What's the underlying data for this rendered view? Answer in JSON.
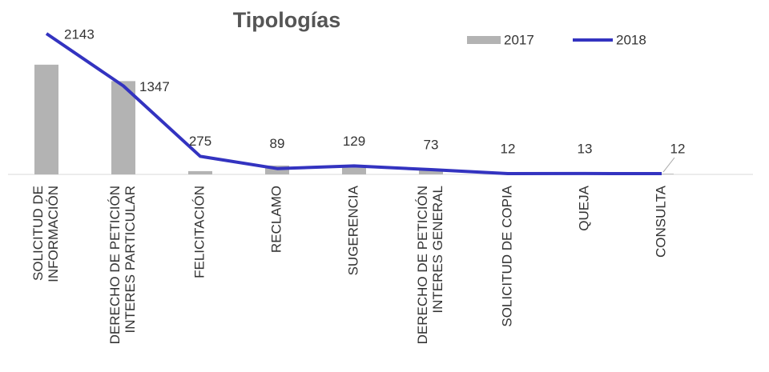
{
  "chart_data": {
    "type": "bar-line",
    "title": "Tipologías",
    "categories": [
      [
        "SOLICITUD DE",
        "INFORMACIÓN"
      ],
      [
        "DERECHO DE PETICIÓN",
        "INTERES PARTICULAR"
      ],
      [
        "FELICITACIÓN"
      ],
      [
        "RECLAMO"
      ],
      [
        "SUGERENCIA"
      ],
      [
        "DERECHO DE PETICIÓN",
        "INTERES GENERAL"
      ],
      [
        "SOLICITUD DE COPIA"
      ],
      [
        "QUEJA"
      ],
      [
        "CONSULTA"
      ]
    ],
    "series": [
      {
        "name": "2017",
        "type": "bar",
        "color": "#b3b3b3",
        "values": [
          1670,
          1420,
          50,
          135,
          110,
          70,
          5,
          5,
          10
        ]
      },
      {
        "name": "2018",
        "type": "line",
        "color": "#3333c0",
        "values": [
          2143,
          1347,
          275,
          89,
          129,
          73,
          12,
          13,
          12
        ]
      }
    ],
    "legend": "top-right"
  }
}
